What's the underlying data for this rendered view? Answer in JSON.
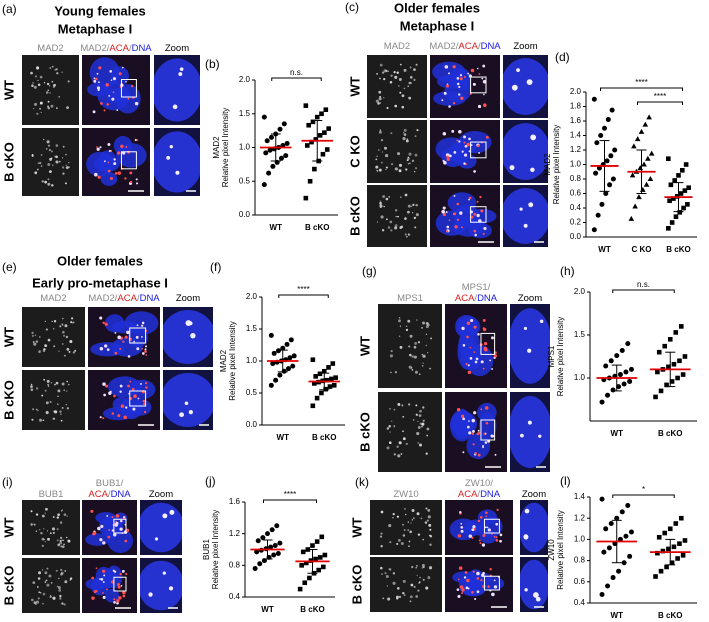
{
  "figure": {
    "panels": [
      {
        "label": "(a)",
        "title": "Young females",
        "subtitle": "Metaphase I",
        "columns": [
          [
            [
              {
                "text": "MAD2",
                "color": "#888888"
              }
            ]
          ],
          [
            [
              {
                "text": "MAD2/",
                "color": "#888888"
              },
              {
                "text": "ACA",
                "color": "#e02020"
              },
              {
                "text": "/",
                "color": "#888888"
              },
              {
                "text": "DNA",
                "color": "#1a1ae0"
              }
            ]
          ],
          [
            [
              {
                "text": "Zoom",
                "color": "#000000"
              }
            ]
          ]
        ],
        "rows": [
          "WT",
          "B cKO"
        ]
      },
      {
        "label": "(c)",
        "title": "Older females",
        "subtitle": "Metaphase I",
        "columns": [
          [
            [
              {
                "text": "MAD2",
                "color": "#888888"
              }
            ]
          ],
          [
            [
              {
                "text": "MAD2/",
                "color": "#888888"
              },
              {
                "text": "ACA",
                "color": "#e02020"
              },
              {
                "text": "/",
                "color": "#888888"
              },
              {
                "text": "DNA",
                "color": "#1a1ae0"
              }
            ]
          ],
          [
            [
              {
                "text": "Zoom",
                "color": "#000000"
              }
            ]
          ]
        ],
        "rows": [
          "WT",
          "C KO",
          "B cKO"
        ]
      },
      {
        "label": "(e)",
        "title": "Older females",
        "subtitle": "Early pro-metaphase I",
        "columns": [
          [
            [
              {
                "text": "MAD2",
                "color": "#888888"
              }
            ]
          ],
          [
            [
              {
                "text": "MAD2/",
                "color": "#888888"
              },
              {
                "text": "ACA",
                "color": "#e02020"
              },
              {
                "text": "/",
                "color": "#888888"
              },
              {
                "text": "DNA",
                "color": "#1a1ae0"
              }
            ]
          ],
          [
            [
              {
                "text": "Zoom",
                "color": "#000000"
              }
            ]
          ]
        ],
        "rows": [
          "WT",
          "B cKO"
        ]
      },
      {
        "label": "(g)",
        "columns": [
          [
            [
              {
                "text": "MPS1",
                "color": "#888888"
              }
            ]
          ],
          [
            [
              {
                "text": "MPS1/",
                "color": "#888888"
              }
            ],
            [
              {
                "text": "ACA",
                "color": "#e02020"
              },
              {
                "text": "/",
                "color": "#888888"
              },
              {
                "text": "DNA",
                "color": "#1a1ae0"
              }
            ]
          ],
          [
            [
              {
                "text": "Zoom",
                "color": "#000000"
              }
            ]
          ]
        ],
        "rows": [
          "WT",
          "B cKO"
        ]
      },
      {
        "label": "(i)",
        "columns": [
          [
            [
              {
                "text": "BUB1",
                "color": "#888888"
              }
            ]
          ],
          [
            [
              {
                "text": "BUB1/",
                "color": "#888888"
              }
            ],
            [
              {
                "text": "ACA",
                "color": "#e02020"
              },
              {
                "text": "/",
                "color": "#888888"
              },
              {
                "text": "DNA",
                "color": "#1a1ae0"
              }
            ]
          ],
          [
            [
              {
                "text": "Zoom",
                "color": "#000000"
              }
            ]
          ]
        ],
        "rows": [
          "WT",
          "B cKO"
        ]
      },
      {
        "label": "(k)",
        "columns": [
          [
            [
              {
                "text": "ZW10",
                "color": "#888888"
              }
            ]
          ],
          [
            [
              {
                "text": "ZW10/",
                "color": "#888888"
              }
            ],
            [
              {
                "text": "ACA",
                "color": "#e02020"
              },
              {
                "text": "/",
                "color": "#888888"
              },
              {
                "text": "DNA",
                "color": "#1a1ae0"
              }
            ]
          ],
          [
            [
              {
                "text": "Zoom",
                "color": "#000000"
              }
            ]
          ]
        ],
        "rows": [
          "WT",
          "B cKO"
        ]
      }
    ]
  },
  "chart_data": [
    {
      "type": "strip",
      "label": "(b)",
      "ylabel": [
        "MAD2",
        "Relative pixel Intensity"
      ],
      "ylim": [
        0,
        2
      ],
      "yticks": [
        {
          "value": 0,
          "label": "0.0"
        },
        0.5,
        {
          "value": 1,
          "label": "1.0"
        },
        1.5,
        {
          "value": 2,
          "label": "2.0"
        }
      ],
      "mean_color": "#e00000",
      "annotations": [
        "n.s."
      ],
      "series": [
        {
          "name": "WT",
          "marker": "circle",
          "color": "#000000",
          "mean": 1.0,
          "sd": 0.2,
          "values": [
            0.45,
            0.62,
            0.72,
            0.78,
            0.84,
            0.88,
            0.92,
            0.96,
            0.98,
            1.0,
            1.03,
            1.06,
            1.1,
            1.15,
            1.2,
            1.27,
            1.35,
            1.45
          ]
        },
        {
          "name": "B cKO",
          "marker": "square",
          "color": "#000000",
          "mean": 1.1,
          "sd": 0.3,
          "values": [
            0.25,
            0.5,
            0.68,
            0.8,
            0.9,
            0.97,
            1.03,
            1.08,
            1.12,
            1.18,
            1.22,
            1.28,
            1.33,
            1.38,
            1.45,
            1.5,
            1.56,
            1.62
          ]
        }
      ]
    },
    {
      "type": "strip",
      "label": "(d)",
      "ylabel": [
        "MAD2",
        "Relative pixel Intensity"
      ],
      "ylim": [
        0,
        2
      ],
      "yticks": [
        {
          "value": 0,
          "label": "0.0"
        },
        0.2,
        0.4,
        0.6,
        0.8,
        {
          "value": 1,
          "label": "1.0"
        },
        1.2,
        1.4,
        1.6,
        1.8,
        {
          "value": 2,
          "label": "2.0"
        }
      ],
      "mean_color": "#e00000",
      "annotations": [
        "****",
        "****"
      ],
      "series": [
        {
          "name": "WT",
          "marker": "circle",
          "color": "#000000",
          "mean": 0.98,
          "sd": 0.35,
          "values": [
            0.1,
            0.3,
            0.45,
            0.6,
            0.72,
            0.8,
            0.88,
            0.95,
            1.0,
            1.05,
            1.12,
            1.2,
            1.3,
            1.4,
            1.5,
            1.62,
            1.75,
            1.9
          ]
        },
        {
          "name": "C KO",
          "marker": "triangle",
          "color": "#000000",
          "mean": 0.9,
          "sd": 0.3,
          "values": [
            0.25,
            0.42,
            0.55,
            0.65,
            0.72,
            0.8,
            0.85,
            0.9,
            0.95,
            1.0,
            1.08,
            1.15,
            1.25,
            1.35,
            1.45,
            1.55,
            1.65
          ]
        },
        {
          "name": "B cKO",
          "marker": "square",
          "color": "#000000",
          "mean": 0.55,
          "sd": 0.2,
          "values": [
            0.12,
            0.2,
            0.28,
            0.34,
            0.4,
            0.45,
            0.5,
            0.53,
            0.56,
            0.6,
            0.64,
            0.68,
            0.72,
            0.78,
            0.85,
            0.92,
            1.0,
            1.08
          ]
        }
      ]
    },
    {
      "type": "strip",
      "label": "(f)",
      "ylabel": [
        "MAD2",
        "Relative pixel Intensity"
      ],
      "ylim": [
        0,
        2
      ],
      "yticks": [
        {
          "value": 0,
          "label": "0.0"
        },
        0.5,
        {
          "value": 1,
          "label": "1.0"
        },
        1.5,
        {
          "value": 2,
          "label": "2.0"
        }
      ],
      "mean_color": "#e00000",
      "annotations": [
        "****"
      ],
      "series": [
        {
          "name": "WT",
          "marker": "circle",
          "color": "#000000",
          "mean": 1.0,
          "sd": 0.17,
          "values": [
            0.62,
            0.7,
            0.78,
            0.84,
            0.88,
            0.92,
            0.96,
            0.98,
            1.0,
            1.02,
            1.05,
            1.08,
            1.12,
            1.16,
            1.2,
            1.26,
            1.33,
            1.4
          ]
        },
        {
          "name": "B cKO",
          "marker": "square",
          "color": "#000000",
          "mean": 0.68,
          "sd": 0.13,
          "values": [
            0.3,
            0.42,
            0.5,
            0.56,
            0.6,
            0.62,
            0.65,
            0.67,
            0.69,
            0.7,
            0.72,
            0.74,
            0.76,
            0.8,
            0.84,
            0.9,
            0.96,
            1.02
          ]
        }
      ]
    },
    {
      "type": "strip",
      "label": "(h)",
      "ylabel": [
        "MPS1",
        "Relative pixel Intensity"
      ],
      "ylim": [
        0.5,
        2
      ],
      "yticks": [
        {
          "value": 1,
          "label": "1.0"
        },
        1.5,
        {
          "value": 2,
          "label": "2.0"
        }
      ],
      "mean_color": "#e00000",
      "annotations": [
        "n.s."
      ],
      "series": [
        {
          "name": "WT",
          "marker": "circle",
          "color": "#000000",
          "mean": 1.0,
          "sd": 0.15,
          "values": [
            0.72,
            0.8,
            0.86,
            0.9,
            0.93,
            0.96,
            0.98,
            1.0,
            1.02,
            1.04,
            1.07,
            1.1,
            1.14,
            1.2,
            1.26,
            1.32,
            1.4
          ]
        },
        {
          "name": "B cKO",
          "marker": "square",
          "color": "#000000",
          "mean": 1.1,
          "sd": 0.2,
          "values": [
            0.78,
            0.85,
            0.92,
            0.96,
            1.0,
            1.04,
            1.07,
            1.1,
            1.13,
            1.16,
            1.2,
            1.25,
            1.3,
            1.37,
            1.45,
            1.53,
            1.6
          ]
        }
      ]
    },
    {
      "type": "strip",
      "label": "(j)",
      "ylabel": [
        "BUB1",
        "Relative pixel Intensity"
      ],
      "ylim": [
        0.4,
        1.6
      ],
      "yticks": [
        0.4,
        0.8,
        1.2,
        1.6
      ],
      "mean_color": "#e00000",
      "annotations": [
        "****"
      ],
      "series": [
        {
          "name": "WT",
          "marker": "circle",
          "color": "#000000",
          "mean": 1.0,
          "sd": 0.12,
          "values": [
            0.76,
            0.82,
            0.86,
            0.9,
            0.93,
            0.95,
            0.97,
            0.99,
            1.01,
            1.03,
            1.05,
            1.08,
            1.11,
            1.15,
            1.2,
            1.25,
            1.3
          ]
        },
        {
          "name": "B cKO",
          "marker": "square",
          "color": "#000000",
          "mean": 0.85,
          "sd": 0.15,
          "values": [
            0.5,
            0.58,
            0.64,
            0.7,
            0.74,
            0.78,
            0.8,
            0.83,
            0.86,
            0.88,
            0.9,
            0.93,
            0.97,
            1.0,
            1.05,
            1.1,
            1.16
          ]
        }
      ]
    },
    {
      "type": "strip",
      "label": "(l)",
      "ylabel": [
        "ZW10",
        "Relative pixel Intensity"
      ],
      "ylim": [
        0.4,
        1.4
      ],
      "yticks": [
        0.4,
        0.6,
        0.8,
        {
          "value": 1,
          "label": "1.0"
        },
        1.2,
        1.4
      ],
      "mean_color": "#e00000",
      "annotations": [
        "*"
      ],
      "series": [
        {
          "name": "WT",
          "marker": "circle",
          "color": "#000000",
          "mean": 0.98,
          "sd": 0.2,
          "values": [
            0.48,
            0.56,
            0.64,
            0.7,
            0.78,
            0.84,
            0.88,
            0.92,
            0.96,
            1.0,
            1.03,
            1.07,
            1.1,
            1.15,
            1.2,
            1.26,
            1.32,
            1.38
          ]
        },
        {
          "name": "B cKO",
          "marker": "square",
          "color": "#000000",
          "mean": 0.88,
          "sd": 0.12,
          "values": [
            0.65,
            0.7,
            0.74,
            0.78,
            0.82,
            0.85,
            0.87,
            0.89,
            0.91,
            0.93,
            0.96,
            0.99,
            1.02,
            1.06,
            1.1,
            1.15,
            1.2
          ]
        }
      ]
    }
  ]
}
